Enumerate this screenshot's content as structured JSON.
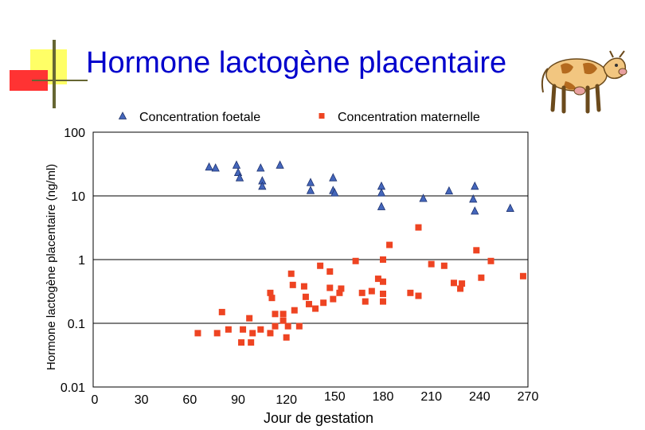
{
  "header": {
    "title": "Hormone lactogène placentaire"
  },
  "chart_data": {
    "type": "scatter",
    "title": "Hormone lactogène placentaire",
    "xlabel": "Jour de gestation",
    "ylabel": "Hormone lactogène placentaire (ng/ml)",
    "xlim": [
      0,
      270
    ],
    "ylim": [
      0.01,
      100
    ],
    "yscale": "log",
    "x_ticks": [
      "0",
      "30",
      "60",
      "90",
      "120",
      "150",
      "180",
      "210",
      "240",
      "270"
    ],
    "y_ticks": [
      "100",
      "10",
      "1",
      "0.1",
      "0.01"
    ],
    "grid": "horizontal",
    "legend_position": "top",
    "series": [
      {
        "name": "Concentration foetale",
        "marker": "triangle",
        "color": "#4466bb",
        "points": [
          [
            72,
            28
          ],
          [
            76,
            27
          ],
          [
            89,
            30
          ],
          [
            90,
            23
          ],
          [
            91,
            19
          ],
          [
            104,
            27
          ],
          [
            105,
            17
          ],
          [
            105,
            14
          ],
          [
            116,
            30
          ],
          [
            135,
            16
          ],
          [
            135,
            12
          ],
          [
            149,
            19
          ],
          [
            149,
            12
          ],
          [
            150,
            11
          ],
          [
            179,
            14
          ],
          [
            179,
            11
          ],
          [
            179,
            6.7
          ],
          [
            205,
            9
          ],
          [
            221,
            11.8
          ],
          [
            236,
            8.8
          ],
          [
            237,
            5.7
          ],
          [
            237,
            14
          ],
          [
            259,
            6.3
          ]
        ]
      },
      {
        "name": "Concentration maternelle",
        "marker": "square",
        "color": "#ee4422",
        "points": [
          [
            65,
            0.07
          ],
          [
            77,
            0.07
          ],
          [
            80,
            0.15
          ],
          [
            84,
            0.08
          ],
          [
            92,
            0.05
          ],
          [
            93,
            0.08
          ],
          [
            97,
            0.12
          ],
          [
            98,
            0.05
          ],
          [
            99,
            0.07
          ],
          [
            104,
            0.08
          ],
          [
            110,
            0.07
          ],
          [
            110,
            0.3
          ],
          [
            111,
            0.25
          ],
          [
            113,
            0.14
          ],
          [
            113,
            0.09
          ],
          [
            118,
            0.11
          ],
          [
            118,
            0.14
          ],
          [
            120,
            0.06
          ],
          [
            121,
            0.09
          ],
          [
            123,
            0.6
          ],
          [
            124,
            0.4
          ],
          [
            125,
            0.16
          ],
          [
            128,
            0.09
          ],
          [
            131,
            0.38
          ],
          [
            132,
            0.26
          ],
          [
            134,
            0.2
          ],
          [
            138,
            0.17
          ],
          [
            141,
            0.8
          ],
          [
            143,
            0.21
          ],
          [
            147,
            0.36
          ],
          [
            147,
            0.65
          ],
          [
            149,
            0.24
          ],
          [
            153,
            0.3
          ],
          [
            154,
            0.35
          ],
          [
            163,
            0.95
          ],
          [
            167,
            0.3
          ],
          [
            169,
            0.22
          ],
          [
            173,
            0.32
          ],
          [
            177,
            0.5
          ],
          [
            180,
            0.45
          ],
          [
            180,
            0.29
          ],
          [
            180,
            0.22
          ],
          [
            180,
            1.0
          ],
          [
            184,
            1.7
          ],
          [
            197,
            0.3
          ],
          [
            202,
            0.27
          ],
          [
            202,
            3.2
          ],
          [
            210,
            0.85
          ],
          [
            218,
            0.8
          ],
          [
            224,
            0.43
          ],
          [
            228,
            0.35
          ],
          [
            229,
            0.42
          ],
          [
            238,
            1.4
          ],
          [
            241,
            0.52
          ],
          [
            247,
            0.95
          ],
          [
            267,
            0.55
          ]
        ]
      }
    ]
  }
}
